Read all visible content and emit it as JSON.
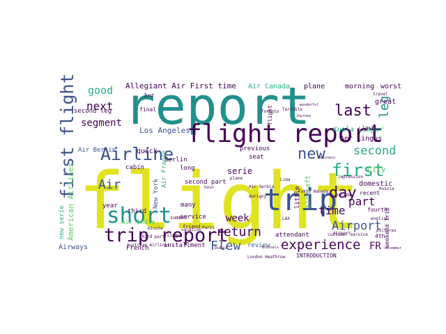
{
  "palette": {
    "yellow": "#e0e31f",
    "teal": "#21908d",
    "deep_purple": "#440154",
    "indigo": "#3b528b",
    "navy": "#2c4a7f",
    "green": "#5ec962",
    "lime": "#9ad93c",
    "aqua": "#27ad81",
    "blue_grey": "#31688e",
    "background": "#ffffff"
  },
  "words": [
    {
      "text": "flight",
      "color": "yellow"
    },
    {
      "text": "report",
      "color": "teal"
    },
    {
      "text": "flight report",
      "color": "deep_purple"
    },
    {
      "text": "trip",
      "color": "indigo"
    },
    {
      "text": "first flight",
      "color": "indigo"
    },
    {
      "text": "Airline",
      "color": "indigo"
    },
    {
      "text": "trip report",
      "color": "deep_purple"
    },
    {
      "text": "short",
      "color": "teal"
    },
    {
      "text": "first",
      "color": "aqua"
    },
    {
      "text": "new",
      "color": "indigo"
    },
    {
      "text": "last",
      "color": "deep_purple"
    },
    {
      "text": "day",
      "color": "deep_purple"
    },
    {
      "text": "Airport",
      "color": "indigo"
    },
    {
      "text": "experience",
      "color": "deep_purple"
    },
    {
      "text": "return",
      "color": "deep_purple"
    },
    {
      "text": "Flew",
      "color": "indigo"
    },
    {
      "text": "leg",
      "color": "teal"
    },
    {
      "text": "second",
      "color": "aqua"
    },
    {
      "text": "part",
      "color": "deep_purple"
    },
    {
      "text": "time",
      "color": "deep_purple"
    },
    {
      "text": "week",
      "color": "deep_purple"
    },
    {
      "text": "next",
      "color": "deep_purple"
    },
    {
      "text": "segment",
      "color": "deep_purple"
    },
    {
      "text": "good",
      "color": "aqua"
    },
    {
      "text": "Air",
      "color": "indigo"
    },
    {
      "text": "FR",
      "color": "deep_purple"
    },
    {
      "text": "Allegiant Air First time",
      "color": "deep_purple"
    },
    {
      "text": "Air Canada",
      "color": "aqua"
    },
    {
      "text": "plane",
      "color": "deep_purple"
    },
    {
      "text": "morning",
      "color": "deep_purple"
    },
    {
      "text": "worst",
      "color": "deep_purple"
    },
    {
      "text": "great",
      "color": "deep_purple"
    },
    {
      "text": "Kuala Lumpur",
      "color": "aqua"
    },
    {
      "text": "Aer Lingus",
      "color": "deep_purple"
    },
    {
      "text": "Los Angeles",
      "color": "indigo"
    },
    {
      "text": "second leg",
      "color": "deep_purple"
    },
    {
      "text": "quick",
      "color": "deep_purple"
    },
    {
      "text": "Air Berlin",
      "color": "indigo"
    },
    {
      "text": "serie",
      "color": "deep_purple"
    },
    {
      "text": "previous",
      "color": "deep_purple"
    },
    {
      "text": "second part",
      "color": "deep_purple"
    },
    {
      "text": "American Airlines",
      "color": "green"
    },
    {
      "text": "Berlin",
      "color": "deep_purple"
    },
    {
      "text": "long",
      "color": "deep_purple"
    },
    {
      "text": "New York",
      "color": "indigo"
    },
    {
      "text": "cabin",
      "color": "deep_purple"
    },
    {
      "text": "Air France",
      "color": "aqua"
    },
    {
      "text": "many",
      "color": "deep_purple"
    },
    {
      "text": "service",
      "color": "deep_purple"
    },
    {
      "text": "year",
      "color": "deep_purple"
    },
    {
      "text": "new serie",
      "color": "aqua"
    },
    {
      "text": "third",
      "color": "deep_purple"
    },
    {
      "text": "Air India",
      "color": "green"
    },
    {
      "text": "Airways",
      "color": "indigo"
    },
    {
      "text": "French",
      "color": "deep_purple"
    },
    {
      "text": "installment",
      "color": "deep_purple"
    },
    {
      "text": "attendant",
      "color": "deep_purple"
    },
    {
      "text": "review",
      "color": "blue_grey"
    },
    {
      "text": "INTRODUCTION",
      "color": "deep_purple"
    },
    {
      "text": "customer service",
      "color": "deep_purple"
    },
    {
      "text": "4th",
      "color": "deep_purple"
    },
    {
      "text": "fourth",
      "color": "deep_purple"
    },
    {
      "text": "domestic",
      "color": "deep_purple"
    },
    {
      "text": "City",
      "color": "green"
    },
    {
      "text": "aircraft",
      "color": "green"
    },
    {
      "text": "recent",
      "color": "deep_purple"
    },
    {
      "text": "weekend trip",
      "color": "deep_purple"
    },
    {
      "text": "little",
      "color": "deep_purple"
    },
    {
      "text": "flight",
      "color": "deep_purple"
    },
    {
      "text": "3rd",
      "color": "deep_purple"
    },
    {
      "text": "final",
      "color": "deep_purple"
    },
    {
      "text": "summer",
      "color": "deep_purple"
    },
    {
      "text": "friend",
      "color": "deep_purple"
    },
    {
      "text": "seat",
      "color": "deep_purple"
    },
    {
      "text": "London Heathrow",
      "color": "deep_purple"
    },
    {
      "text": "Tokyo Haneda",
      "color": "deep_purple"
    },
    {
      "text": "Air Serbia",
      "color": "deep_purple"
    },
    {
      "text": "Aurigny",
      "color": "deep_purple"
    },
    {
      "text": "last",
      "color": "deep_purple"
    },
    {
      "text": "Terrible",
      "color": "deep_purple"
    },
    {
      "text": "plane",
      "color": "deep_purple"
    },
    {
      "text": "Journey",
      "color": "deep_purple"
    },
    {
      "text": "Toronto",
      "color": "deep_purple"
    },
    {
      "text": "pictures",
      "color": "deep_purple"
    },
    {
      "text": "Austrian Airlines",
      "color": "deep_purple"
    },
    {
      "text": "Lingus",
      "color": "deep_purple"
    },
    {
      "text": "Paris",
      "color": "deep_purple"
    },
    {
      "text": "Russia",
      "color": "deep_purple"
    },
    {
      "text": "travel",
      "color": "deep_purple"
    },
    {
      "text": "english",
      "color": "deep_purple"
    },
    {
      "text": "December",
      "color": "deep_purple"
    },
    {
      "text": "Business",
      "color": "deep_purple"
    },
    {
      "text": "wonderful",
      "color": "deep_purple"
    },
    {
      "text": "minute",
      "color": "deep_purple"
    },
    {
      "text": "vacation",
      "color": "deep_purple"
    },
    {
      "text": "hour",
      "color": "deep_purple"
    },
    {
      "text": "Brussels",
      "color": "deep_purple"
    },
    {
      "text": "Airport",
      "color": "deep_purple"
    },
    {
      "text": "third part",
      "color": "deep_purple"
    },
    {
      "text": "Lima",
      "color": "deep_purple"
    },
    {
      "text": "LAX",
      "color": "deep_purple"
    },
    {
      "text": "impression",
      "color": "deep_purple"
    },
    {
      "text": "holiday",
      "color": "deep_purple"
    },
    {
      "text": "Dubai",
      "color": "deep_purple"
    }
  ]
}
